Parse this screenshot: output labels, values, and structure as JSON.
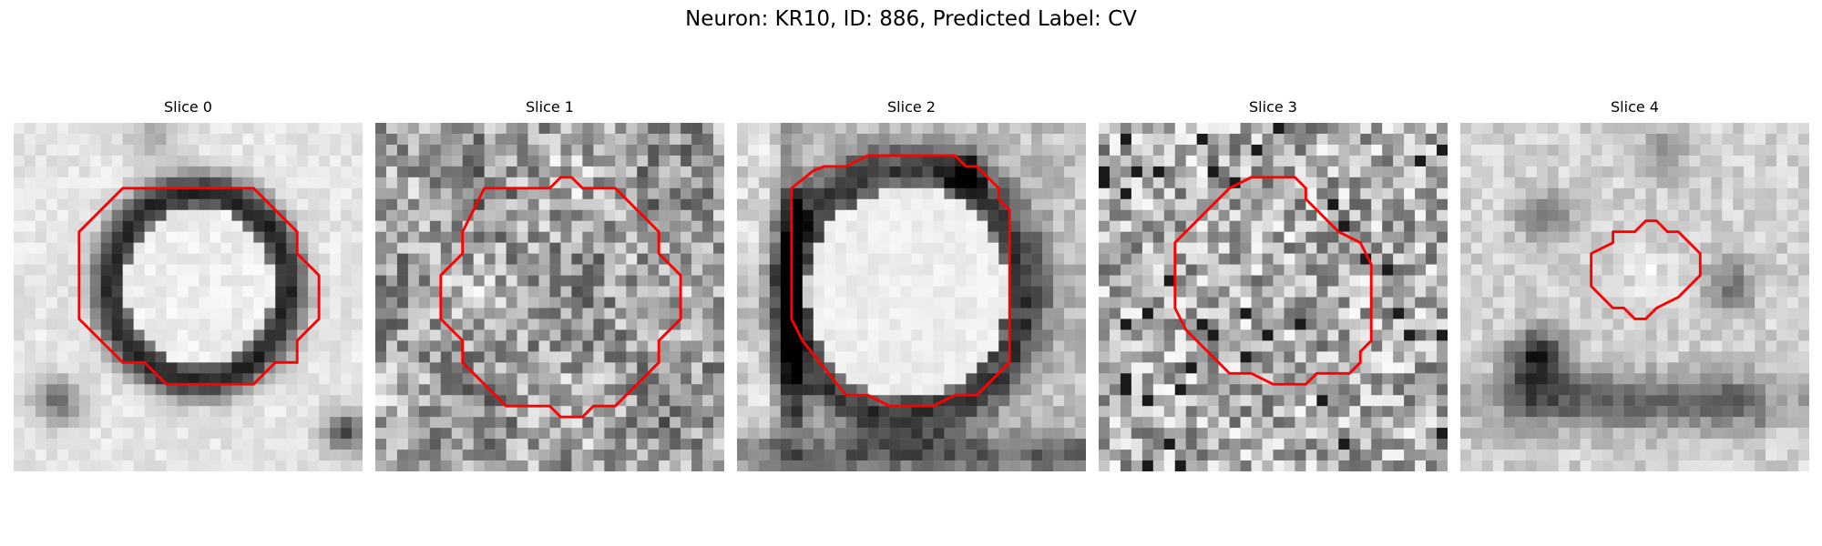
{
  "figure": {
    "title": "Neuron: KR10, ID: 886, Predicted Label: CV"
  },
  "contour_color": "#ff0000",
  "panels": [
    {
      "title": "Slice 0",
      "icon": "cell-membrane-ring-image",
      "contour": [
        [
          8,
          3
        ],
        [
          11,
          3
        ],
        [
          13,
          5
        ],
        [
          13,
          6
        ],
        [
          14,
          7
        ],
        [
          14,
          9
        ],
        [
          13,
          10
        ],
        [
          13,
          11
        ],
        [
          12,
          11
        ],
        [
          11,
          12
        ],
        [
          7,
          12
        ],
        [
          6,
          11
        ],
        [
          5,
          11
        ],
        [
          4,
          10
        ],
        [
          3,
          9
        ],
        [
          3,
          5
        ],
        [
          5,
          3
        ]
      ]
    },
    {
      "title": "Slice 1",
      "icon": "granular-cell-image",
      "contour": [
        [
          5,
          3
        ],
        [
          8,
          3
        ],
        [
          8.5,
          2.5
        ],
        [
          9,
          2.5
        ],
        [
          9.5,
          3
        ],
        [
          11,
          3
        ],
        [
          13,
          5
        ],
        [
          13,
          6
        ],
        [
          14,
          7
        ],
        [
          14,
          9
        ],
        [
          13,
          10
        ],
        [
          13,
          11
        ],
        [
          11,
          13
        ],
        [
          10,
          13
        ],
        [
          9.5,
          13.5
        ],
        [
          8.5,
          13.5
        ],
        [
          8,
          13
        ],
        [
          6,
          13
        ],
        [
          4,
          11
        ],
        [
          4,
          10
        ],
        [
          3,
          9
        ],
        [
          3,
          8
        ],
        [
          3,
          7
        ],
        [
          4,
          6
        ],
        [
          4,
          5
        ]
      ]
    },
    {
      "title": "Slice 2",
      "icon": "bright-nucleus-image",
      "contour": [
        [
          4,
          2
        ],
        [
          5,
          2
        ],
        [
          6,
          1.5
        ],
        [
          10,
          1.5
        ],
        [
          10.5,
          2
        ],
        [
          11,
          2
        ],
        [
          12,
          3
        ],
        [
          12,
          3.5
        ],
        [
          12.5,
          4
        ],
        [
          12.5,
          11
        ],
        [
          11,
          12.5
        ],
        [
          10,
          12.5
        ],
        [
          9,
          13
        ],
        [
          7,
          13
        ],
        [
          6,
          12.5
        ],
        [
          5,
          12.5
        ],
        [
          3,
          10
        ],
        [
          2.5,
          9
        ],
        [
          2.5,
          5
        ],
        [
          2.5,
          3
        ],
        [
          3.5,
          2.2
        ]
      ]
    },
    {
      "title": "Slice 3",
      "icon": "textured-cell-image",
      "contour": [
        [
          6,
          3
        ],
        [
          7,
          2.5
        ],
        [
          9,
          2.5
        ],
        [
          9.5,
          3
        ],
        [
          9.5,
          3.5
        ],
        [
          11,
          5
        ],
        [
          12,
          5.5
        ],
        [
          12.5,
          6.5
        ],
        [
          12.5,
          10
        ],
        [
          12,
          10.5
        ],
        [
          12,
          11
        ],
        [
          11.5,
          11.5
        ],
        [
          10,
          11.5
        ],
        [
          9.5,
          12
        ],
        [
          8,
          12
        ],
        [
          7,
          11.5
        ],
        [
          6,
          11.5
        ],
        [
          4,
          9.5
        ],
        [
          3.5,
          8.5
        ],
        [
          3.5,
          5.5
        ],
        [
          5,
          4
        ],
        [
          5.5,
          3.5
        ]
      ]
    },
    {
      "title": "Slice 4",
      "icon": "dark-cell-cluster-image",
      "contour": [
        [
          7,
          5
        ],
        [
          8,
          5
        ],
        [
          8.5,
          4.5
        ],
        [
          9,
          4.5
        ],
        [
          9.5,
          5
        ],
        [
          10,
          5
        ],
        [
          11,
          6
        ],
        [
          11,
          7
        ],
        [
          10,
          8
        ],
        [
          9,
          8.5
        ],
        [
          8.5,
          9
        ],
        [
          8,
          9
        ],
        [
          7.5,
          8.5
        ],
        [
          7,
          8.5
        ],
        [
          6,
          7.5
        ],
        [
          6,
          6
        ],
        [
          7,
          5.5
        ]
      ]
    }
  ]
}
